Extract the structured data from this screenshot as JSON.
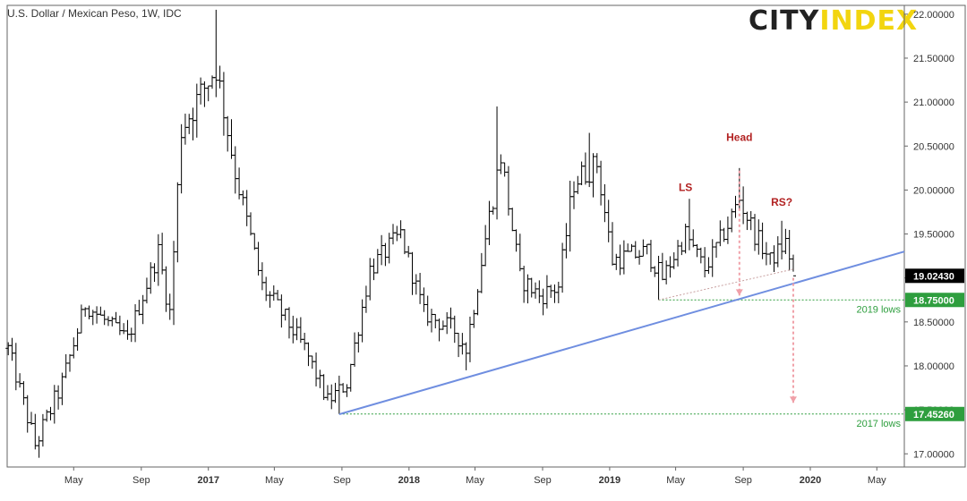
{
  "chart_data": {
    "type": "ohlc",
    "title": "U.S. Dollar / Mexican Peso, 1W, IDC",
    "brand": {
      "part1": "CITY",
      "part2": "INDEX",
      "colors": [
        "#222222",
        "#f2d50f"
      ]
    },
    "ylim": [
      16.85,
      22.1
    ],
    "y_ticks": [
      "17.00000",
      "17.50000",
      "18.00000",
      "18.50000",
      "19.00000",
      "19.50000",
      "20.00000",
      "20.50000",
      "21.00000",
      "21.50000",
      "22.00000"
    ],
    "x_ticks": [
      "May",
      "Sep",
      "2017",
      "May",
      "Sep",
      "2018",
      "May",
      "Sep",
      "2019",
      "May",
      "Sep",
      "2020",
      "May"
    ],
    "x_tick_dates": [
      "2016-05-01",
      "2016-09-01",
      "2017-01-01",
      "2017-05-01",
      "2017-09-01",
      "2018-01-01",
      "2018-05-01",
      "2018-09-01",
      "2019-01-01",
      "2019-05-01",
      "2019-09-01",
      "2020-01-01",
      "2020-05-01"
    ],
    "x_range": [
      "2016-01-01",
      "2020-06-20"
    ],
    "series_color": "#000000",
    "ohlc": {
      "keypoints": [
        [
          "2016-01-03",
          18.2,
          0.25
        ],
        [
          "2016-02-21",
          17.1,
          0.3
        ],
        [
          "2016-04-10",
          17.8,
          0.3
        ],
        [
          "2016-05-22",
          18.7,
          0.25
        ],
        [
          "2016-08-07",
          18.3,
          0.25
        ],
        [
          "2016-10-02",
          19.3,
          0.3
        ],
        [
          "2016-10-23",
          18.6,
          0.35
        ],
        [
          "2016-11-13",
          20.7,
          0.45
        ],
        [
          "2017-01-15",
          21.4,
          0.5
        ],
        [
          "2017-02-19",
          20.2,
          0.35
        ],
        [
          "2017-04-09",
          18.9,
          0.3
        ],
        [
          "2017-05-14",
          18.6,
          0.3
        ],
        [
          "2017-06-25",
          18.2,
          0.25
        ],
        [
          "2017-08-06",
          17.6,
          0.25
        ],
        [
          "2017-09-10",
          17.8,
          0.25
        ],
        [
          "2017-10-22",
          19.1,
          0.3
        ],
        [
          "2017-12-17",
          19.5,
          0.3
        ],
        [
          "2018-01-28",
          18.6,
          0.25
        ],
        [
          "2018-03-25",
          18.4,
          0.3
        ],
        [
          "2018-04-15",
          18.2,
          0.3
        ],
        [
          "2018-05-27",
          19.7,
          0.35
        ],
        [
          "2018-06-17",
          20.4,
          0.4
        ],
        [
          "2018-07-22",
          19.0,
          0.3
        ],
        [
          "2018-08-26",
          18.8,
          0.3
        ],
        [
          "2018-09-30",
          18.9,
          0.3
        ],
        [
          "2018-10-28",
          20.1,
          0.4
        ],
        [
          "2018-12-09",
          20.3,
          0.35
        ],
        [
          "2019-01-06",
          19.2,
          0.3
        ],
        [
          "2019-03-10",
          19.3,
          0.3
        ],
        [
          "2019-04-07",
          19.0,
          0.25
        ],
        [
          "2019-05-19",
          19.5,
          0.3
        ],
        [
          "2019-06-23",
          19.1,
          0.25
        ],
        [
          "2019-08-04",
          19.6,
          0.3
        ],
        [
          "2019-08-25",
          19.9,
          0.35
        ],
        [
          "2019-09-22",
          19.5,
          0.3
        ],
        [
          "2019-10-20",
          19.2,
          0.25
        ],
        [
          "2019-11-17",
          19.4,
          0.3
        ],
        [
          "2019-12-01",
          19.1,
          0.25
        ]
      ],
      "fixed_extremes": [
        [
          "2016-02-21",
          17.05,
          "low"
        ],
        [
          "2017-01-15",
          22.05,
          "high"
        ],
        [
          "2017-08-27",
          17.45,
          "low"
        ],
        [
          "2018-04-15",
          17.95,
          "low"
        ],
        [
          "2018-06-10",
          20.95,
          "high"
        ],
        [
          "2018-11-25",
          20.65,
          "high"
        ],
        [
          "2019-03-31",
          18.75,
          "low"
        ],
        [
          "2019-05-26",
          19.9,
          "high"
        ],
        [
          "2019-08-25",
          20.25,
          "high"
        ],
        [
          "2019-11-10",
          19.65,
          "high"
        ]
      ]
    },
    "last_price": {
      "label": "19.02430",
      "value": 19.0243,
      "box_color": "#000000"
    },
    "horizontal_levels": [
      {
        "value": 18.75,
        "label": "18.75000",
        "note": "2019 lows",
        "color": "#2e9e3e",
        "from": "2019-03-31"
      },
      {
        "value": 17.4526,
        "label": "17.45260",
        "note": "2017 lows",
        "color": "#2e9e3e",
        "from": "2017-08-27"
      }
    ],
    "trendline": {
      "from": [
        "2017-08-27",
        17.45
      ],
      "to": [
        "2020-06-20",
        19.3
      ],
      "color": "#6f8ee0"
    },
    "neckline": {
      "from": [
        "2019-03-31",
        18.75
      ],
      "to": [
        "2019-12-01",
        19.1
      ],
      "color": "#c8a0a0"
    },
    "pattern_labels": [
      {
        "text": "LS",
        "date": "2019-05-19",
        "value": 19.99,
        "color": "#b22222"
      },
      {
        "text": "Head",
        "date": "2019-08-25",
        "value": 20.56,
        "color": "#b22222"
      },
      {
        "text": "RS?",
        "date": "2019-11-10",
        "value": 19.82,
        "color": "#b22222"
      }
    ],
    "projection_arrows": [
      {
        "date": "2019-08-25",
        "from": 20.22,
        "to": 18.8,
        "color": "#f0a0a8"
      },
      {
        "date": "2019-12-01",
        "from": 19.0,
        "to": 17.58,
        "color": "#f0a0a8"
      }
    ]
  }
}
